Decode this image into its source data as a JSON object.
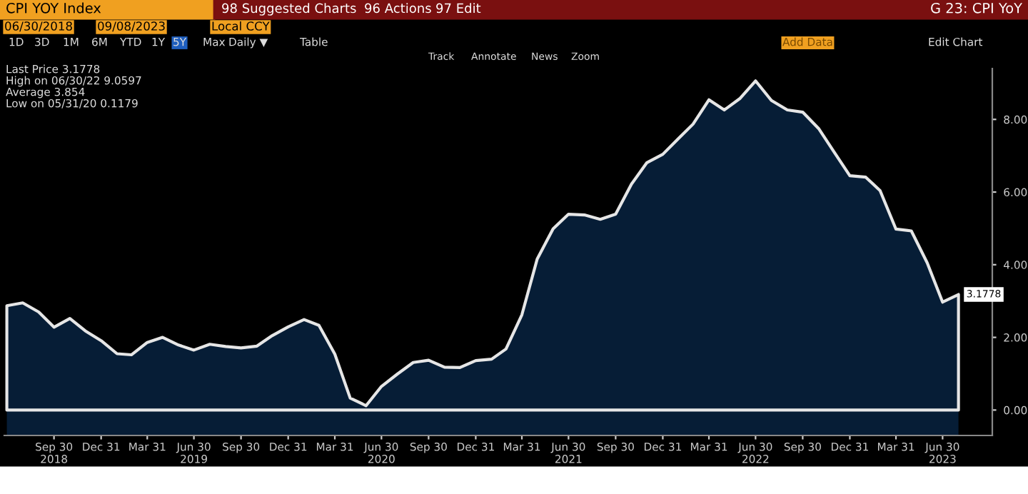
{
  "chart_data": {
    "type": "area",
    "title": "CPI YOY Index",
    "subtitle": "G 23: CPI YoY",
    "x": [
      "2018-06-30",
      "2018-07-31",
      "2018-08-31",
      "2018-09-30",
      "2018-10-31",
      "2018-11-30",
      "2018-12-31",
      "2019-01-31",
      "2019-02-28",
      "2019-03-31",
      "2019-04-30",
      "2019-05-31",
      "2019-06-30",
      "2019-07-31",
      "2019-08-31",
      "2019-09-30",
      "2019-10-31",
      "2019-11-30",
      "2019-12-31",
      "2020-01-31",
      "2020-02-29",
      "2020-03-31",
      "2020-04-30",
      "2020-05-31",
      "2020-06-30",
      "2020-07-31",
      "2020-08-31",
      "2020-09-30",
      "2020-10-31",
      "2020-11-30",
      "2020-12-31",
      "2021-01-31",
      "2021-02-28",
      "2021-03-31",
      "2021-04-30",
      "2021-05-31",
      "2021-06-30",
      "2021-07-31",
      "2021-08-31",
      "2021-09-30",
      "2021-10-31",
      "2021-11-30",
      "2021-12-31",
      "2022-01-31",
      "2022-02-28",
      "2022-03-31",
      "2022-04-30",
      "2022-05-31",
      "2022-06-30",
      "2022-07-31",
      "2022-08-31",
      "2022-09-30",
      "2022-10-31",
      "2022-11-30",
      "2022-12-31",
      "2023-01-31",
      "2023-02-28",
      "2023-03-31",
      "2023-04-30",
      "2023-05-31",
      "2023-06-30",
      "2023-07-31"
    ],
    "series": [
      {
        "color": "#061d36",
        "values": [
          2.87,
          2.95,
          2.7,
          2.28,
          2.52,
          2.18,
          1.91,
          1.55,
          1.52,
          1.86,
          2.0,
          1.79,
          1.65,
          1.81,
          1.75,
          1.71,
          1.76,
          2.05,
          2.29,
          2.49,
          2.33,
          1.54,
          0.33,
          0.12,
          0.65,
          0.99,
          1.31,
          1.37,
          1.18,
          1.17,
          1.36,
          1.4,
          1.68,
          2.62,
          4.16,
          4.99,
          5.39,
          5.37,
          5.25,
          5.39,
          6.22,
          6.81,
          7.04,
          7.48,
          7.87,
          8.54,
          8.26,
          8.58,
          9.06,
          8.52,
          8.26,
          8.2,
          7.75,
          7.11,
          6.45,
          6.41,
          6.04,
          4.98,
          4.93,
          4.05,
          2.97,
          3.18
        ]
      }
    ],
    "xlim": [
      "2018-06-25",
      "2023-10-05"
    ],
    "xticks": [
      {
        "value": "2018-09-30",
        "label": "Sep 30\n2018"
      },
      {
        "value": "2018-12-31",
        "label": "Dec 31"
      },
      {
        "value": "2019-03-31",
        "label": "Mar 31"
      },
      {
        "value": "2019-06-30",
        "label": "Jun 30\n2019"
      },
      {
        "value": "2019-09-30",
        "label": "Sep 30"
      },
      {
        "value": "2019-12-31",
        "label": "Dec 31"
      },
      {
        "value": "2020-03-31",
        "label": "Mar 31"
      },
      {
        "value": "2020-06-30",
        "label": "Jun 30\n2020"
      },
      {
        "value": "2020-09-30",
        "label": "Sep 30"
      },
      {
        "value": "2020-12-31",
        "label": "Dec 31"
      },
      {
        "value": "2021-03-31",
        "label": "Mar 31"
      },
      {
        "value": "2021-06-30",
        "label": "Jun 30\n2021"
      },
      {
        "value": "2021-09-30",
        "label": "Sep 30"
      },
      {
        "value": "2021-12-31",
        "label": "Dec 31"
      },
      {
        "value": "2022-03-31",
        "label": "Mar 31"
      },
      {
        "value": "2022-06-30",
        "label": "Jun 30\n2022"
      },
      {
        "value": "2022-09-30",
        "label": "Sep 30"
      },
      {
        "value": "2022-12-31",
        "label": "Dec 31"
      },
      {
        "value": "2023-03-31",
        "label": "Mar 31"
      },
      {
        "value": "2023-06-30",
        "label": "Jun 30\n2023"
      }
    ],
    "ylim": [
      -0.7,
      9.4
    ],
    "yticks": [
      {
        "value": 0,
        "label": "0.00"
      },
      {
        "value": 2,
        "label": "2.00"
      },
      {
        "value": 4,
        "label": "4.00"
      },
      {
        "value": 6,
        "label": "6.00"
      },
      {
        "value": 8,
        "label": "8.00"
      }
    ],
    "bands": [
      {
        "axis": "y",
        "from": -0.7,
        "to": 0,
        "color": "#061d36"
      }
    ],
    "grid": false,
    "legend": false,
    "annotations": [
      {
        "text": "3.1778",
        "x": "2023-07-31",
        "y": 3.18
      },
      "Last Price 3.1778",
      "High on 06/30/22 9.0597",
      "Average 3.854",
      "Low on 05/31/20 0.1179",
      "98 Suggested Charts",
      "96 Actions",
      "97 Edit",
      "06/30/2018",
      "09/08/2023",
      "Local CCY",
      "1D",
      "3D",
      "1M",
      "6M",
      "YTD",
      "1Y",
      "5Y",
      "Max",
      "Daily ▼",
      "Table",
      "Add Data",
      "Edit Chart",
      "Track",
      "Annotate",
      "News",
      "Zoom"
    ]
  }
}
